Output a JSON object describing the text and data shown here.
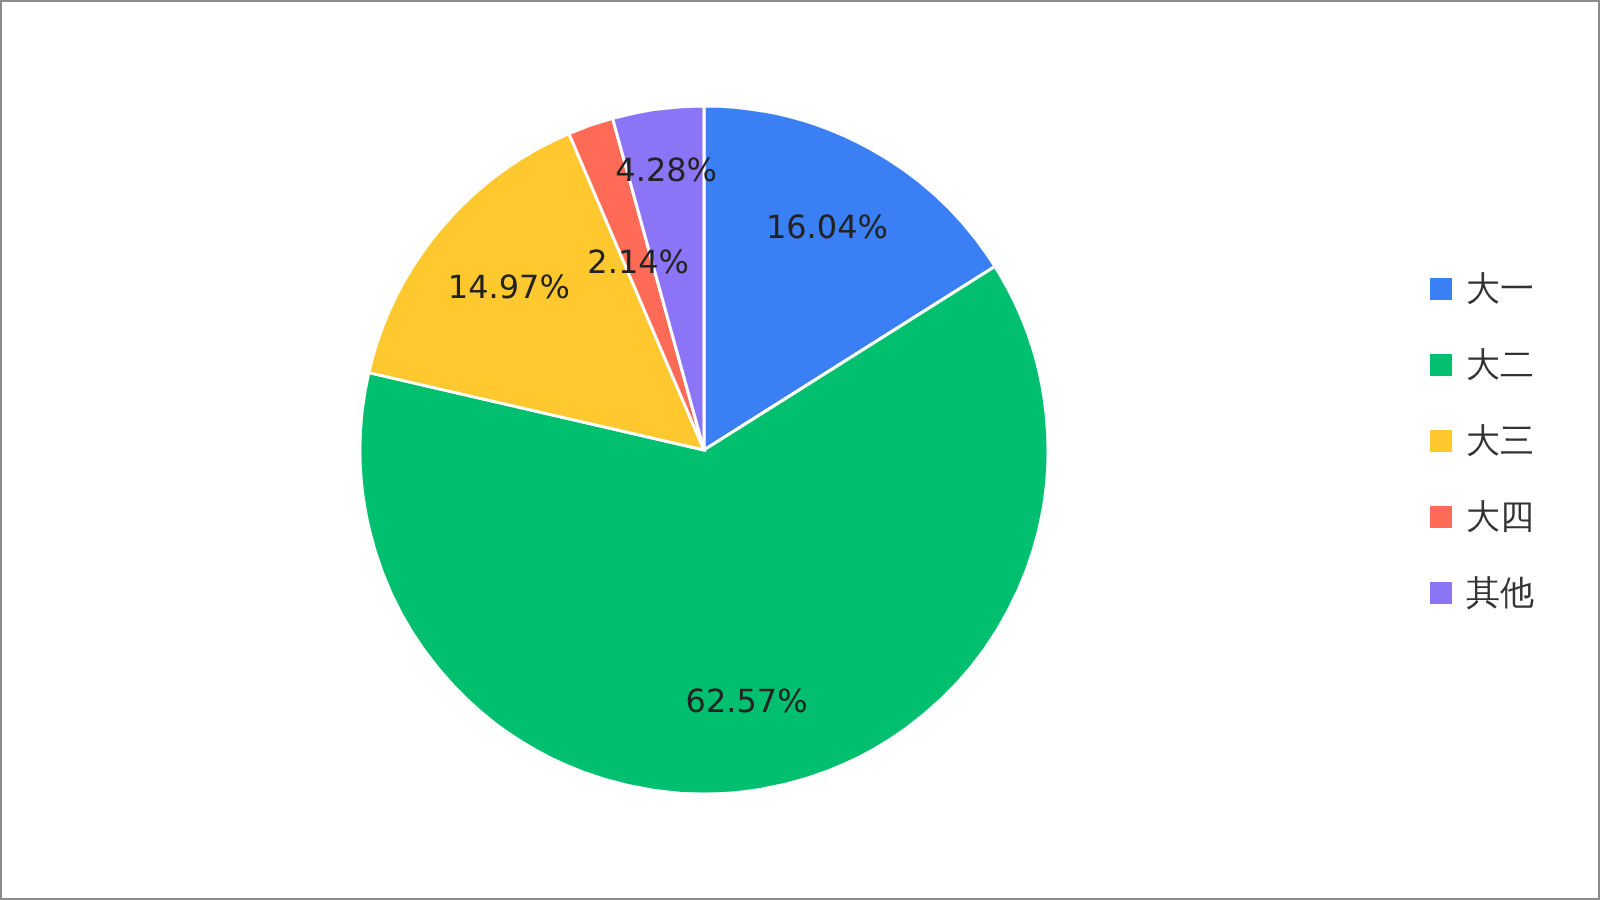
{
  "chart_data": {
    "type": "pie",
    "categories": [
      "大一",
      "大二",
      "大三",
      "大四",
      "其他"
    ],
    "values": [
      16.04,
      62.57,
      14.97,
      2.14,
      4.28
    ],
    "colors": [
      "#3b7ff5",
      "#00bf6f",
      "#ffc82e",
      "#ff6b57",
      "#8b74f5"
    ],
    "value_labels": [
      "16.04%",
      "62.57%",
      "14.97%",
      "2.14%",
      "4.28%"
    ],
    "legend": "right"
  }
}
